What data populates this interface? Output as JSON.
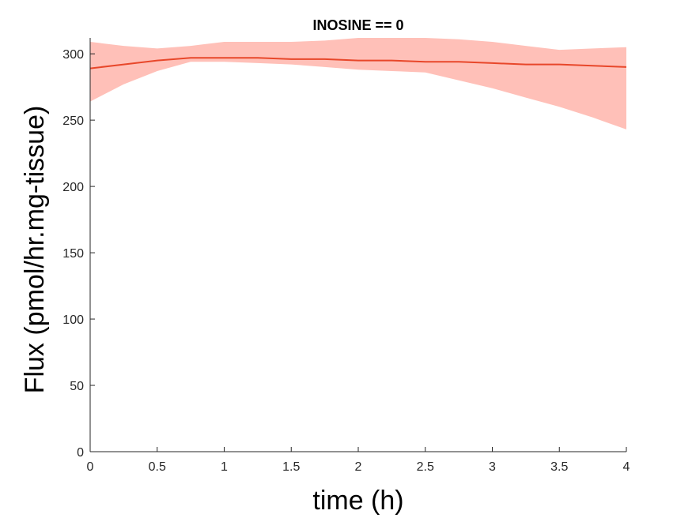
{
  "chart_data": {
    "type": "line",
    "title": "INOSINE == 0",
    "xlabel": "time (h)",
    "ylabel": "Flux (pmol/hr.mg-tissue)",
    "xlim": [
      0,
      4
    ],
    "ylim": [
      0,
      312
    ],
    "xticks": [
      0,
      0.5,
      1,
      1.5,
      2,
      2.5,
      3,
      3.5,
      4
    ],
    "yticks": [
      0,
      50,
      100,
      150,
      200,
      250,
      300
    ],
    "xtick_labels": [
      "0",
      "0.5",
      "1",
      "1.5",
      "2",
      "2.5",
      "3",
      "3.5",
      "4"
    ],
    "ytick_labels": [
      "0",
      "50",
      "100",
      "150",
      "200",
      "250",
      "300"
    ],
    "grid": false,
    "series": [
      {
        "line_color": "#e8472a",
        "band_color": "#ffc0b8",
        "x": [
          0,
          0.25,
          0.5,
          0.75,
          1,
          1.25,
          1.5,
          1.75,
          2,
          2.25,
          2.5,
          2.75,
          3,
          3.25,
          3.5,
          3.75,
          4
        ],
        "y": [
          289,
          292,
          295,
          297,
          297,
          297,
          296,
          296,
          295,
          295,
          294,
          294,
          293,
          292,
          292,
          291,
          290
        ],
        "lower": [
          264,
          277,
          287,
          294,
          294,
          293,
          292,
          290,
          288,
          287,
          286,
          280,
          274,
          267,
          260,
          252,
          243
        ],
        "upper": [
          309,
          306,
          304,
          306,
          309,
          309,
          309,
          310,
          312,
          312,
          312,
          311,
          309,
          306,
          303,
          304,
          305
        ]
      }
    ]
  }
}
